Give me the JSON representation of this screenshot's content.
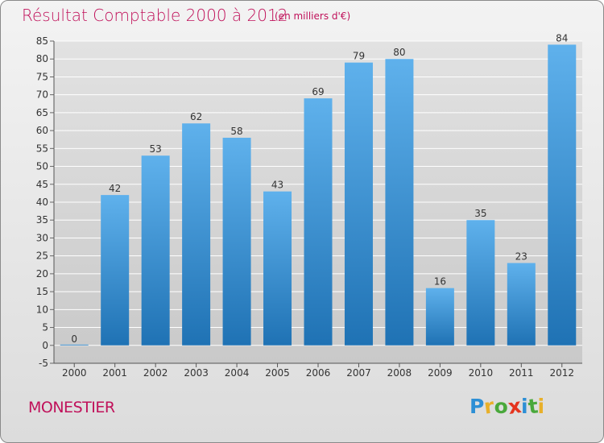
{
  "header": {
    "title": "Résultat Comptable 2000 à 2012",
    "subtitle": "(en milliers d'€)"
  },
  "footer": {
    "commune": "MONESTIER",
    "logo_text": "Proxiti"
  },
  "colors": {
    "title": "#c0115a",
    "bar_top": "#5fb1ec",
    "bar_bottom": "#1f72b4",
    "grid": "#ffffff"
  },
  "chart_data": {
    "type": "bar",
    "title": "Résultat Comptable 2000 à 2012",
    "subtitle": "(en milliers d'€)",
    "categories": [
      "2000",
      "2001",
      "2002",
      "2003",
      "2004",
      "2005",
      "2006",
      "2007",
      "2008",
      "2009",
      "2010",
      "2011",
      "2012"
    ],
    "values": [
      0,
      42,
      53,
      62,
      58,
      43,
      69,
      79,
      80,
      16,
      35,
      23,
      84
    ],
    "ylim": [
      -5,
      85
    ],
    "yticks": [
      -5,
      0,
      5,
      10,
      15,
      20,
      25,
      30,
      35,
      40,
      45,
      50,
      55,
      60,
      65,
      70,
      75,
      80,
      85
    ],
    "grid": true,
    "data_labels": true
  }
}
